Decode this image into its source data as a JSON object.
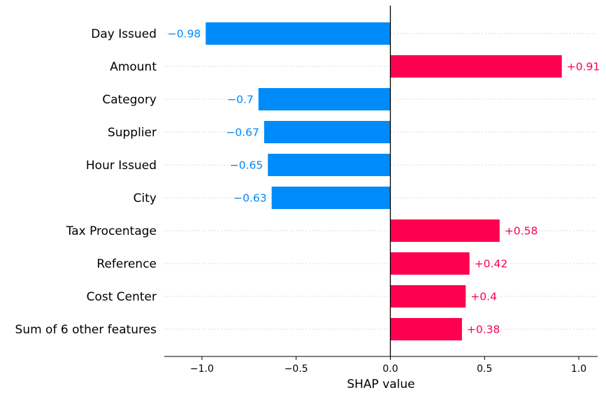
{
  "chart_data": {
    "type": "bar",
    "orientation": "horizontal",
    "xlabel": "SHAP value",
    "xlim": [
      -1.2,
      1.1
    ],
    "xticks": [
      -1.0,
      -0.5,
      0.0,
      0.5,
      1.0
    ],
    "xtick_labels": [
      "−1.0",
      "−0.5",
      "0.0",
      "0.5",
      "1.0"
    ],
    "grid": false,
    "categories": [
      "Day Issued",
      "Amount",
      "Category",
      "Supplier",
      "Hour Issued",
      "City",
      "Tax Procentage",
      "Reference",
      "Cost Center",
      "Sum of 6 other features"
    ],
    "values": [
      -0.98,
      0.91,
      -0.7,
      -0.67,
      -0.65,
      -0.63,
      0.58,
      0.42,
      0.4,
      0.38
    ],
    "value_labels": [
      "−0.98",
      "+0.91",
      "−0.7",
      "−0.67",
      "−0.65",
      "−0.63",
      "+0.58",
      "+0.42",
      "+0.4",
      "+0.38"
    ],
    "colors": {
      "positive": "#ff0051",
      "negative": "#008bfb"
    }
  }
}
